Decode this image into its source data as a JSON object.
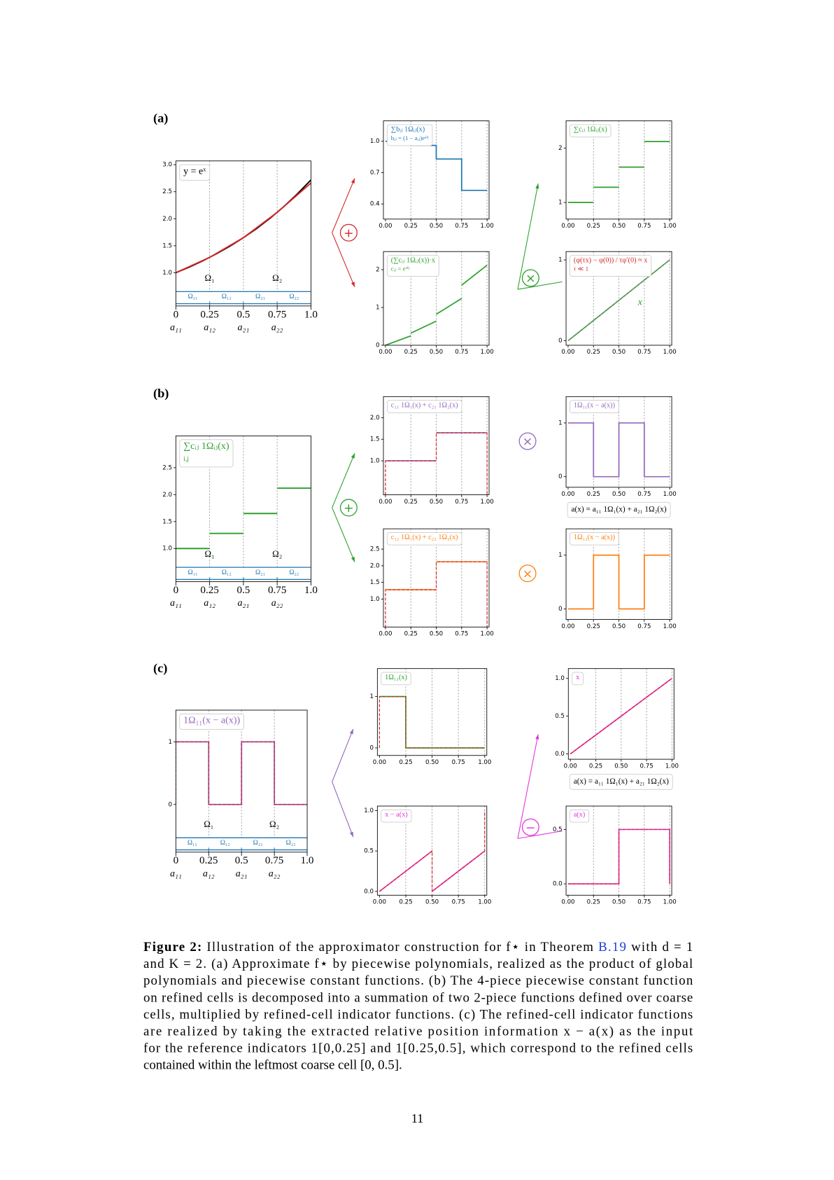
{
  "panel_labels": [
    "(a)",
    "(b)",
    "(c)"
  ],
  "small_axis": {
    "xlim": [
      -0.02,
      1.02
    ],
    "xticks": [
      {
        "value": 0,
        "label": "0.00"
      },
      0.25,
      {
        "value": 0.5,
        "label": "0.50"
      },
      0.75,
      {
        "value": 1,
        "label": "1.00"
      }
    ]
  },
  "big_axis": {
    "xlim": [
      0,
      1
    ],
    "xticks": [
      0,
      0.25,
      0.5,
      0.75,
      {
        "value": 1,
        "label": "1.0"
      }
    ],
    "xticks2": [
      "a₁₁",
      "a₁₂",
      "a₂₁",
      "a₂₂"
    ],
    "cells": [
      "Ω₁",
      "Ω₂"
    ],
    "subcells": [
      "Ω₁₁",
      "Ω₁₂",
      "Ω₂₁",
      "Ω₂₂"
    ]
  },
  "plots": [
    {
      "legend": [
        "y = eˣ"
      ],
      "legend_color": "#000000",
      "ylim": [
        0.385,
        3.07
      ],
      "yticks": [
        {
          "value": 1,
          "label": "1.0"
        },
        1.5,
        {
          "value": 2,
          "label": "2.0"
        },
        2.5,
        {
          "value": 3,
          "label": "3.0"
        }
      ],
      "lines": [
        {
          "color": "#000000",
          "dash": false,
          "x": [
            0,
            0.1,
            0.2,
            0.3,
            0.4,
            0.5,
            0.6,
            0.7,
            0.8,
            0.9,
            1
          ],
          "y": [
            1,
            1.105,
            1.221,
            1.35,
            1.492,
            1.649,
            1.822,
            2.014,
            2.226,
            2.46,
            2.718
          ]
        },
        {
          "color": "#d62728",
          "dash": false,
          "x": [
            0,
            0.25,
            0.5,
            0.75,
            1
          ],
          "y": [
            1,
            1.284,
            1.649,
            2.117,
            2.66
          ]
        }
      ]
    },
    {
      "legend": [
        "∑bᵢⱼ 1Ωᵢⱼ(x)",
        "bᵢⱼ = (1 − aᵢⱼ)eᵃⁱʲ"
      ],
      "legend_color": "#1f77b4",
      "ylim": [
        0.255,
        1.195
      ],
      "yticks": [
        0.4,
        0.7,
        {
          "value": 1,
          "label": "1.0"
        }
      ],
      "lines": [
        {
          "color": "#1f77b4",
          "dash": false,
          "x": [
            0,
            0.25,
            0.25,
            0.5,
            0.5,
            0.75,
            0.75,
            1
          ],
          "y": [
            1,
            1,
            0.96,
            0.96,
            0.83,
            0.83,
            0.53,
            0.53
          ]
        }
      ]
    },
    {
      "legend": [
        "∑cᵢⱼ 1Ωᵢⱼ(x)"
      ],
      "legend_color": "#2ca02c",
      "ylim": [
        0.694,
        2.5
      ],
      "yticks": [
        1,
        2
      ],
      "lines": [
        {
          "color": "#2ca02c",
          "dash": false,
          "x": [
            0,
            0.25,
            null,
            0.25,
            0.5,
            null,
            0.5,
            0.75,
            null,
            0.75,
            1
          ],
          "y": [
            1,
            1,
            null,
            1.28,
            1.28,
            null,
            1.65,
            1.65,
            null,
            2.12,
            2.12
          ]
        }
      ]
    },
    {
      "legend": [
        "(∑cᵢⱼ 1Ωᵢⱼ(x))·x",
        "cᵢⱼ = eᵃⁱʲ"
      ],
      "legend_color": "#2ca02c",
      "ylim": [
        0,
        2.48
      ],
      "yticks": [
        0,
        1,
        2
      ],
      "lines": [
        {
          "color": "#2ca02c",
          "dash": false,
          "x": [
            0,
            0.25,
            null,
            0.25,
            0.5,
            null,
            0.5,
            0.75,
            null,
            0.75,
            1
          ],
          "y": [
            0,
            0.25,
            null,
            0.32,
            0.64,
            null,
            0.82,
            1.24,
            null,
            1.59,
            2.12
          ]
        }
      ]
    },
    {
      "legend": [
        "(φ(τx) − φ(0)) / τφ′(0) ≈ x",
        "τ ≪ 1"
      ],
      "legend_color": "#d62728",
      "annotation": "x",
      "ylim": [
        -0.056,
        1.103
      ],
      "yticks": [
        0,
        1
      ],
      "lines": [
        {
          "color": "#2ca02c",
          "dash": false,
          "x": [
            0,
            1
          ],
          "y": [
            0,
            1
          ]
        },
        {
          "color": "#888888",
          "dash": true,
          "x": [
            0,
            1
          ],
          "y": [
            0,
            1
          ]
        }
      ]
    },
    {
      "legend": [
        "∑cᵢⱼ 1Ωᵢⱼ(x)",
        "i,j"
      ],
      "legend_color": "#2ca02c",
      "ylim": [
        0.384,
        3.09
      ],
      "yticks": [
        {
          "value": 1,
          "label": "1.0"
        },
        1.5,
        {
          "value": 2,
          "label": "2.0"
        },
        2.5
      ],
      "lines": [
        {
          "color": "#2ca02c",
          "dash": false,
          "x": [
            0,
            0.25,
            null,
            0.25,
            0.5,
            null,
            0.5,
            0.75,
            null,
            0.75,
            1
          ],
          "y": [
            1,
            1,
            null,
            1.28,
            1.28,
            null,
            1.65,
            1.65,
            null,
            2.12,
            2.12
          ]
        }
      ]
    },
    {
      "legend": [
        "c₁₁ 1Ω₁(x) + c₂₁ 1Ω₂(x)"
      ],
      "legend_color": "#9467bd",
      "ylim": [
        0.21,
        2.49
      ],
      "yticks": [
        {
          "value": 1,
          "label": "1.0"
        },
        1.5,
        {
          "value": 2,
          "label": "2.0"
        }
      ],
      "lines": [
        {
          "color": "#9467bd",
          "dash": false,
          "x": [
            0,
            0.5,
            null,
            0.5,
            1
          ],
          "y": [
            1,
            1,
            null,
            1.65,
            1.65
          ]
        },
        {
          "color": "#d62728",
          "dash": true,
          "x": [
            0,
            0,
            0.5,
            0.5,
            1,
            1
          ],
          "y": [
            0,
            1,
            1,
            1.65,
            1.65,
            0
          ]
        }
      ]
    },
    {
      "legend": [
        "1Ω₁₁(x − a(x))"
      ],
      "legend_color": "#9467bd",
      "note": "a(x) = a₁₁ 1Ω₁(x) + a₂₁ 1Ω₂(x)",
      "ylim": [
        -0.197,
        1.49
      ],
      "yticks": [
        0,
        1
      ],
      "lines": [
        {
          "color": "#9467bd",
          "dash": false,
          "x": [
            0,
            0.25,
            0.25,
            0.5,
            0.5,
            0.75,
            0.75,
            1
          ],
          "y": [
            1,
            1,
            0,
            0,
            1,
            1,
            0,
            0
          ]
        }
      ]
    },
    {
      "legend": [
        "c₁₂ 1Ω₁(x) + c₂₂ 1Ω₂(x)"
      ],
      "legend_color": "#ff7f0e",
      "ylim": [
        0.16,
        3.11
      ],
      "yticks": [
        {
          "value": 1,
          "label": "1.0"
        },
        1.5,
        {
          "value": 2,
          "label": "2.0"
        },
        2.5
      ],
      "lines": [
        {
          "color": "#ff7f0e",
          "dash": false,
          "x": [
            0,
            0.5,
            null,
            0.5,
            1
          ],
          "y": [
            1.28,
            1.28,
            null,
            2.12,
            2.12
          ]
        },
        {
          "color": "#d62728",
          "dash": true,
          "x": [
            0,
            0,
            0.5,
            0.5,
            1,
            1
          ],
          "y": [
            0,
            1.28,
            1.28,
            2.12,
            2.12,
            0
          ]
        }
      ]
    },
    {
      "legend": [
        "1Ω₁₂(x − a(x))"
      ],
      "legend_color": "#ff7f0e",
      "ylim": [
        -0.197,
        1.49
      ],
      "yticks": [
        0,
        1
      ],
      "lines": [
        {
          "color": "#ff7f0e",
          "dash": false,
          "x": [
            0,
            0.25,
            0.25,
            0.5,
            0.5,
            0.75,
            0.75,
            1
          ],
          "y": [
            0,
            0,
            1,
            1,
            0,
            0,
            1,
            1
          ]
        }
      ]
    },
    {
      "legend": [
        "1Ω₁₁(x − a(x))"
      ],
      "legend_color": "#9467bd",
      "ylim": [
        -0.76,
        1.506
      ],
      "yticks": [
        0,
        1
      ],
      "lines": [
        {
          "color": "#9467bd",
          "dash": false,
          "x": [
            0,
            0.25,
            0.25,
            0.5,
            0.5,
            0.75,
            0.75,
            1
          ],
          "y": [
            1,
            1,
            0,
            0,
            1,
            1,
            0,
            0
          ]
        },
        {
          "color": "#d62728",
          "dash": true,
          "x": [
            0,
            0,
            0.25,
            0.25,
            0.5,
            0.5,
            0.75,
            0.75,
            1
          ],
          "y": [
            0,
            1,
            1,
            0,
            0,
            1,
            1,
            0,
            0
          ]
        }
      ]
    },
    {
      "legend": [
        "1Ω₁₁(x)"
      ],
      "legend_color": "#2ca02c",
      "ylim": [
        -0.147,
        1.544
      ],
      "yticks": [
        0,
        1
      ],
      "lines": [
        {
          "color": "#2ca02c",
          "dash": false,
          "x": [
            0,
            0.25,
            0.25,
            1
          ],
          "y": [
            1,
            1,
            0,
            0
          ]
        },
        {
          "color": "#d62728",
          "dash": true,
          "x": [
            0,
            0,
            0.25,
            0.25,
            1
          ],
          "y": [
            0,
            1,
            1,
            0,
            0
          ]
        }
      ]
    },
    {
      "legend": [
        "x"
      ],
      "legend_color": "#e334d6",
      "note": "a(x) = a₁₁ 1Ω₁(x) + a₂₁ 1Ω₂(x)",
      "ylim": [
        -0.07,
        1.13
      ],
      "yticks": [
        {
          "value": 0,
          "label": "0.0"
        },
        0.5,
        {
          "value": 1,
          "label": "1.0"
        }
      ],
      "lines": [
        {
          "color": "#e334d6",
          "dash": false,
          "x": [
            0,
            1
          ],
          "y": [
            0,
            1
          ]
        },
        {
          "color": "#d62728",
          "dash": true,
          "x": [
            0,
            1
          ],
          "y": [
            0,
            1
          ]
        }
      ]
    },
    {
      "legend": [
        "x − a(x)"
      ],
      "legend_color": "#e334d6",
      "ylim": [
        -0.047,
        1.056
      ],
      "yticks": [
        {
          "value": 0,
          "label": "0.0"
        },
        0.5,
        {
          "value": 1,
          "label": "1.0"
        }
      ],
      "lines": [
        {
          "color": "#e334d6",
          "dash": false,
          "x": [
            0,
            0.5,
            null,
            0.5,
            1
          ],
          "y": [
            0,
            0.5,
            null,
            0,
            0.5
          ]
        },
        {
          "color": "#d62728",
          "dash": true,
          "x": [
            0,
            0.5,
            0.5,
            1,
            1
          ],
          "y": [
            0,
            0.5,
            0,
            0.5,
            1
          ]
        }
      ]
    },
    {
      "legend": [
        "a(x)"
      ],
      "legend_color": "#e334d6",
      "ylim": [
        -0.104,
        0.715
      ],
      "yticks": [
        {
          "value": 0,
          "label": "0.0"
        },
        0.5
      ],
      "lines": [
        {
          "color": "#e334d6",
          "dash": false,
          "x": [
            0,
            0.5,
            0.5,
            1,
            1
          ],
          "y": [
            0,
            0,
            0.5,
            0.5,
            0
          ]
        },
        {
          "color": "#d62728",
          "dash": true,
          "x": [
            0,
            0.5,
            0.5,
            1,
            1
          ],
          "y": [
            0,
            0,
            0.5,
            0.5,
            0
          ]
        }
      ]
    }
  ],
  "ops": [
    {
      "symbol": "+",
      "color": "#d62728"
    },
    {
      "symbol": "×",
      "color": "#2ca02c"
    },
    {
      "symbol": "+",
      "color": "#2ca02c"
    },
    {
      "symbol": "×",
      "color": "#9467bd"
    },
    {
      "symbol": "×",
      "color": "#ff7f0e"
    },
    {
      "symbol": "−",
      "color": "#e334d6"
    }
  ],
  "caption": {
    "label": "Figure 2:",
    "line0": [
      " Illustration of the approximator construction for f⋆ in Theorem ",
      "B.19",
      " with d = 1"
    ],
    "lines": [
      "and K = 2. (a) Approximate f⋆ by piecewise polynomials, realized as the product of global",
      "polynomials and piecewise constant functions. (b) The 4-piece piecewise constant function",
      "on refined cells is decomposed into a summation of two 2-piece functions defined over coarse",
      "cells, multiplied by refined-cell indicator functions. (c) The refined-cell indicator functions",
      "are realized by taking the extracted relative position information x − a(x) as the input",
      "for the reference indicators 1[0,0.25] and 1[0.25,0.5], which correspond to the refined cells",
      "contained within the leftmost coarse cell [0, 0.5]."
    ]
  },
  "page_number": "11"
}
